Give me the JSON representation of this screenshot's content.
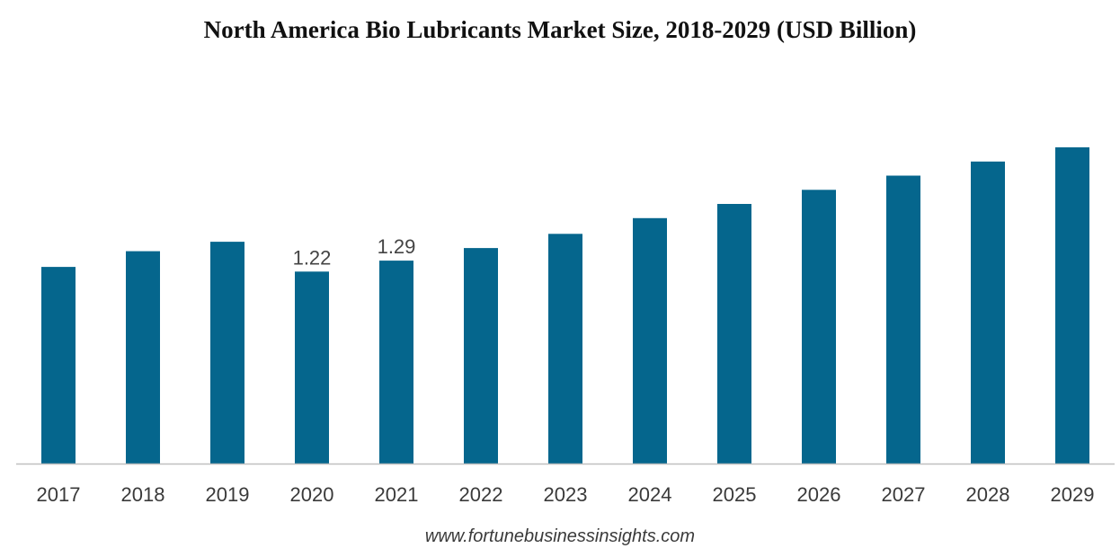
{
  "chart_data": {
    "type": "bar",
    "title": "North America Bio Lubricants Market Size, 2018-2029 (USD Billion)",
    "categories": [
      "2017",
      "2018",
      "2019",
      "2020",
      "2021",
      "2022",
      "2023",
      "2024",
      "2025",
      "2026",
      "2027",
      "2028",
      "2029"
    ],
    "values": [
      1.25,
      1.35,
      1.41,
      1.22,
      1.29,
      1.37,
      1.46,
      1.56,
      1.65,
      1.74,
      1.83,
      1.92,
      2.01
    ],
    "data_labels": [
      null,
      null,
      null,
      "1.22",
      "1.29",
      null,
      null,
      null,
      null,
      null,
      null,
      null,
      null
    ],
    "bar_color": "#05668d",
    "axis_color": "#bfbfbf",
    "ylim": [
      0,
      2.01
    ],
    "grid": false,
    "legend": "none"
  },
  "source": "www.fortunebusinessinsights.com"
}
